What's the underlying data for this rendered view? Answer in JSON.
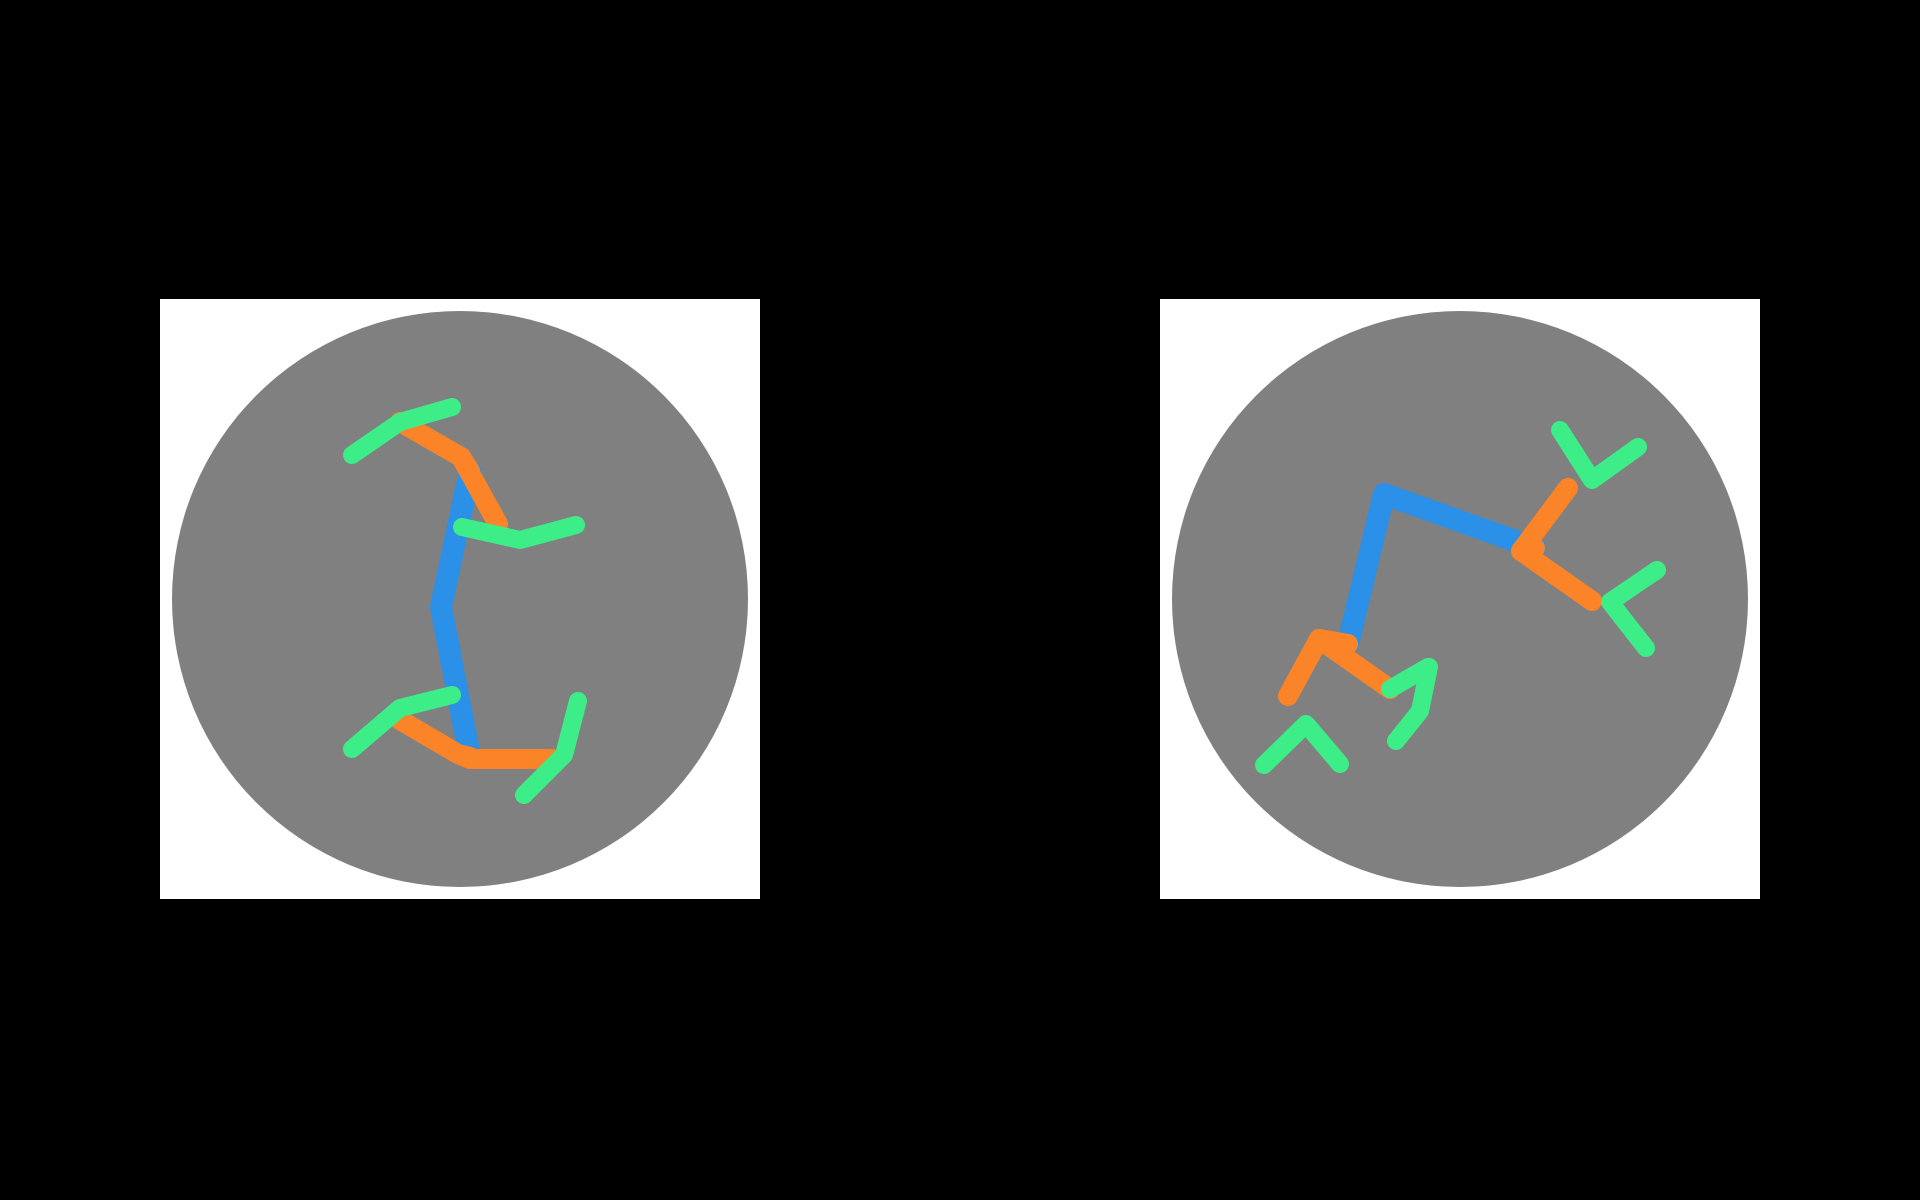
{
  "colors": {
    "background": "#000000",
    "panel": "#ffffff",
    "disc": "#808080",
    "trunk": "#2a90e8",
    "branch": "#fb8428",
    "twig": "#3ded87"
  },
  "figures": [
    {
      "name": "left-figure",
      "shape": "folded-tree"
    },
    {
      "name": "right-figure",
      "shape": "spread-tree"
    }
  ]
}
